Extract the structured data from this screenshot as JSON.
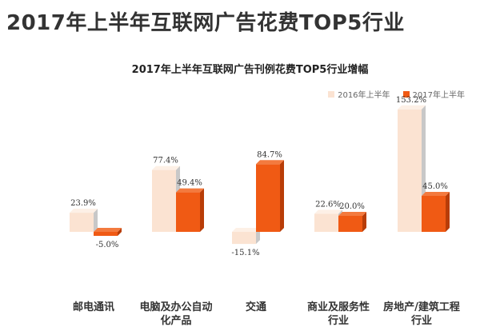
{
  "title": "2017年上半年互联网广告花费TOP5行业",
  "chart_data": {
    "type": "bar",
    "title": "2017年上半年互联网广告刊例花费TOP5行业增幅",
    "categories": [
      [
        "邮电通讯"
      ],
      [
        "电脑及办公自动",
        "化产品"
      ],
      [
        "交通"
      ],
      [
        "商业及服务性",
        "行业"
      ],
      [
        "房地产/建筑工程",
        "行业"
      ]
    ],
    "series": [
      {
        "name": "2016年上半年",
        "values": [
          23.9,
          77.4,
          -15.1,
          22.6,
          153.2
        ],
        "labels": [
          "23.9%",
          "77.4%",
          "-15.1%",
          "22.6%",
          "153.2%"
        ]
      },
      {
        "name": "2017年上半年",
        "values": [
          -5.0,
          49.4,
          84.7,
          20.0,
          45.0
        ],
        "labels": [
          "-5.0%",
          "49.4%",
          "84.7%",
          "20.0%",
          "45.0%"
        ]
      }
    ],
    "legend_position": "top-right",
    "grid": false,
    "ylim": [
      -20,
      160
    ],
    "colors": {
      "2016": "#fbe3d2",
      "2016_side": "#c8c8c8",
      "2016_top": "#fdf0e6",
      "2017": "#f05a14",
      "2017_side": "#b83d08",
      "2017_top": "#f37a3e"
    }
  }
}
